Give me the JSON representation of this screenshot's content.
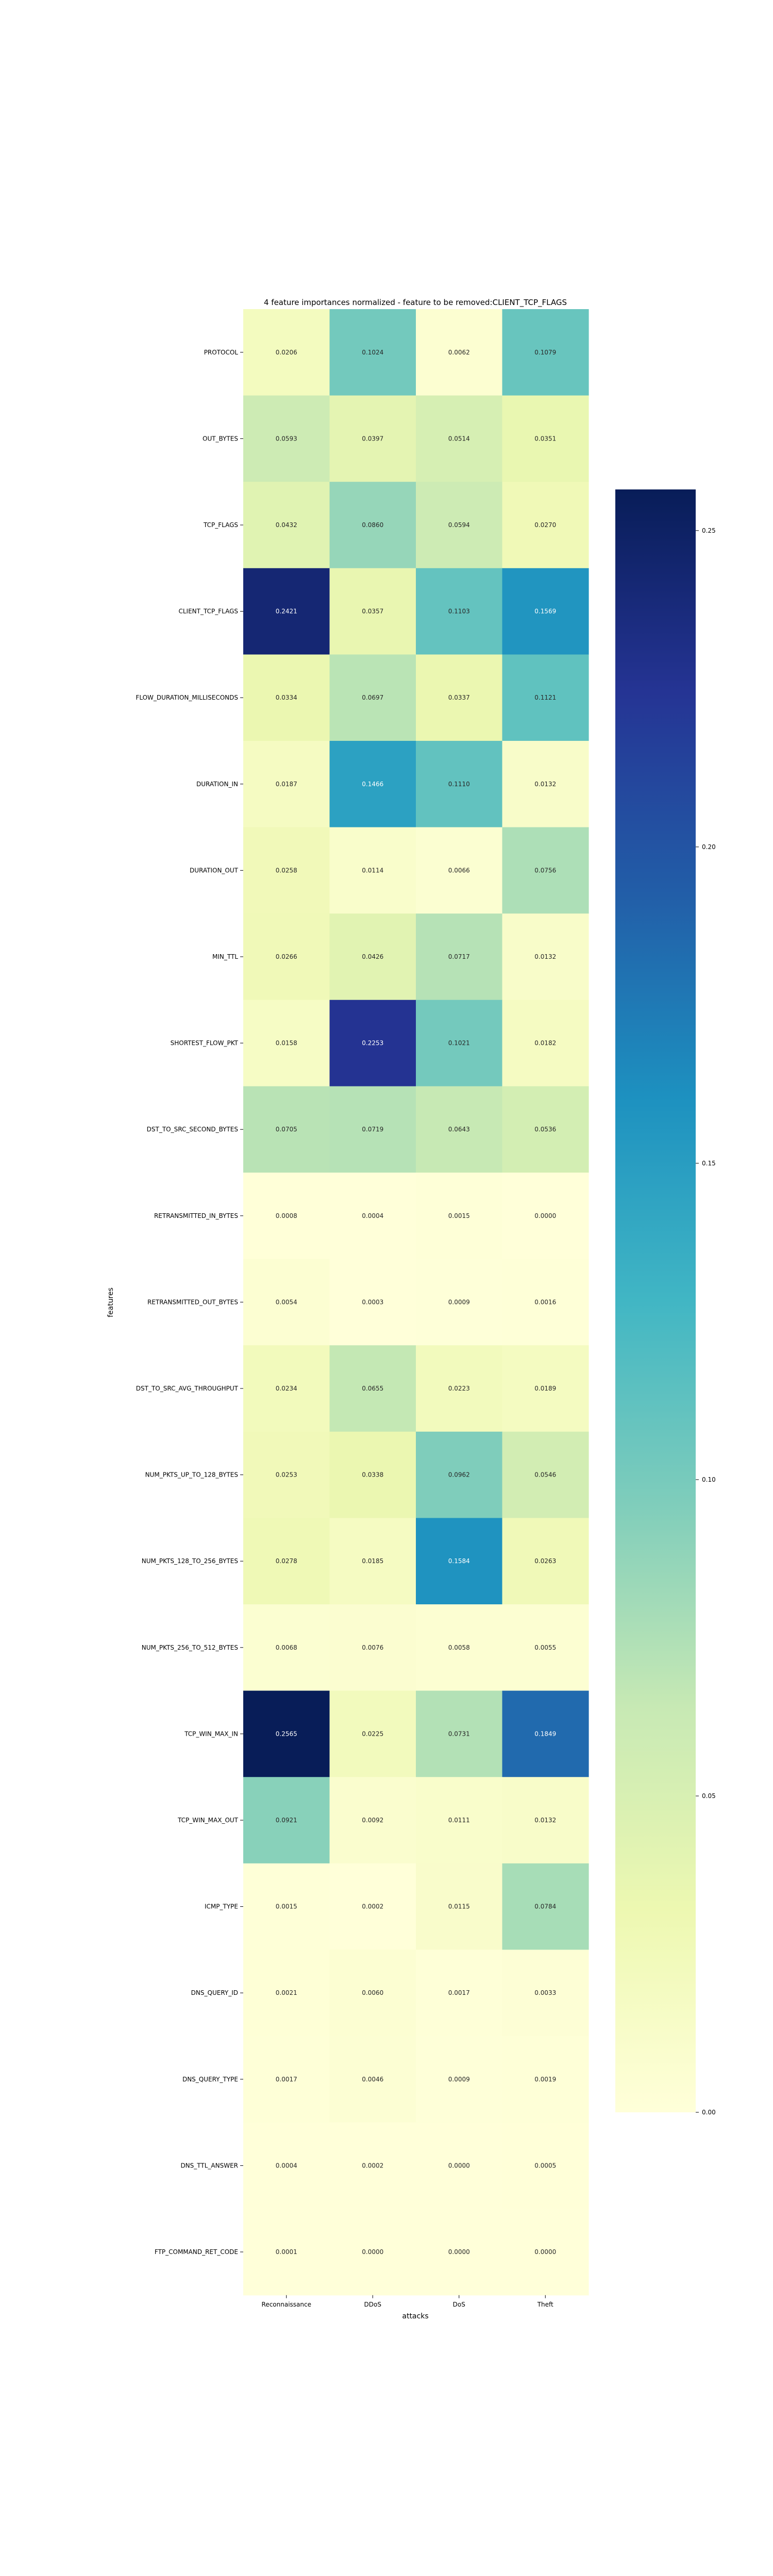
{
  "chart_data": {
    "type": "heatmap",
    "title": "4 feature importances normalized - feature to be removed:CLIENT_TCP_FLAGS",
    "xlabel": "attacks",
    "ylabel": "features",
    "columns": [
      "Reconnaissance",
      "DDoS",
      "DoS",
      "Theft"
    ],
    "rows": [
      "PROTOCOL",
      "OUT_BYTES",
      "TCP_FLAGS",
      "CLIENT_TCP_FLAGS",
      "FLOW_DURATION_MILLISECONDS",
      "DURATION_IN",
      "DURATION_OUT",
      "MIN_TTL",
      "SHORTEST_FLOW_PKT",
      "DST_TO_SRC_SECOND_BYTES",
      "RETRANSMITTED_IN_BYTES",
      "RETRANSMITTED_OUT_BYTES",
      "DST_TO_SRC_AVG_THROUGHPUT",
      "NUM_PKTS_UP_TO_128_BYTES",
      "NUM_PKTS_128_TO_256_BYTES",
      "NUM_PKTS_256_TO_512_BYTES",
      "TCP_WIN_MAX_IN",
      "TCP_WIN_MAX_OUT",
      "ICMP_TYPE",
      "DNS_QUERY_ID",
      "DNS_QUERY_TYPE",
      "DNS_TTL_ANSWER",
      "FTP_COMMAND_RET_CODE"
    ],
    "values": [
      [
        0.0206,
        0.1024,
        0.0062,
        0.1079
      ],
      [
        0.0593,
        0.0397,
        0.0514,
        0.0351
      ],
      [
        0.0432,
        0.086,
        0.0594,
        0.027
      ],
      [
        0.2421,
        0.0357,
        0.1103,
        0.1569
      ],
      [
        0.0334,
        0.0697,
        0.0337,
        0.1121
      ],
      [
        0.0187,
        0.1466,
        0.111,
        0.0132
      ],
      [
        0.0258,
        0.0114,
        0.0066,
        0.0756
      ],
      [
        0.0266,
        0.0426,
        0.0717,
        0.0132
      ],
      [
        0.0158,
        0.2253,
        0.1021,
        0.0182
      ],
      [
        0.0705,
        0.0719,
        0.0643,
        0.0536
      ],
      [
        0.0008,
        0.0004,
        0.0015,
        0.0
      ],
      [
        0.0054,
        0.0003,
        0.0009,
        0.0016
      ],
      [
        0.0234,
        0.0655,
        0.0223,
        0.0189
      ],
      [
        0.0253,
        0.0338,
        0.0962,
        0.0546
      ],
      [
        0.0278,
        0.0185,
        0.1584,
        0.0263
      ],
      [
        0.0068,
        0.0076,
        0.0058,
        0.0055
      ],
      [
        0.2565,
        0.0225,
        0.0731,
        0.1849
      ],
      [
        0.0921,
        0.0092,
        0.0111,
        0.0132
      ],
      [
        0.0015,
        0.0002,
        0.0115,
        0.0784
      ],
      [
        0.0021,
        0.006,
        0.0017,
        0.0033
      ],
      [
        0.0017,
        0.0046,
        0.0009,
        0.0019
      ],
      [
        0.0004,
        0.0002,
        0.0,
        0.0005
      ],
      [
        0.0001,
        0.0,
        0.0,
        0.0
      ]
    ],
    "colormap": "YlGnBu",
    "colormap_stops": [
      "#ffffd9",
      "#edf8b1",
      "#c7e9b4",
      "#7fcdbb",
      "#41b6c4",
      "#1d91c0",
      "#225ea8",
      "#253494",
      "#081d58"
    ],
    "vmin": 0.0,
    "vmax": 0.2565,
    "colorbar_ticks": [
      0.0,
      0.05,
      0.1,
      0.15,
      0.2,
      0.25
    ],
    "colorbar_tick_labels": [
      "0.00",
      "0.05",
      "0.10",
      "0.15",
      "0.20",
      "0.25"
    ],
    "annotation_format": "4 decimals"
  }
}
